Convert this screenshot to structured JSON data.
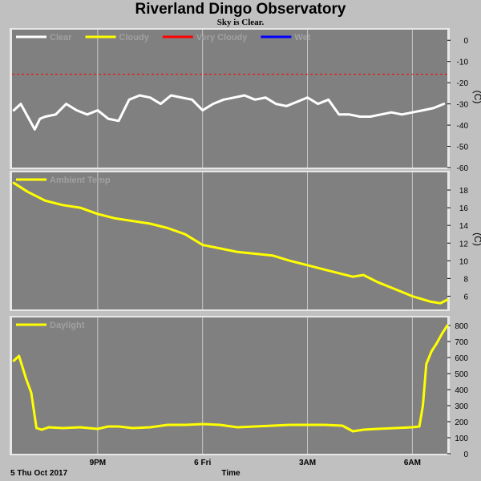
{
  "header": {
    "title": "Riverland Dingo Observatory",
    "subtitle": "Sky is Clear."
  },
  "x_axis": {
    "label": "Time",
    "start_label": "5 Thu Oct 2017",
    "ticks": [
      {
        "label": "9PM",
        "hour": 21
      },
      {
        "label": "6 Fri",
        "hour": 24
      },
      {
        "label": "3AM",
        "hour": 27
      },
      {
        "label": "6AM",
        "hour": 30
      }
    ],
    "range_hours": [
      18.55,
      31.0
    ]
  },
  "colors": {
    "plot_bg": "#808080",
    "page_bg": "#c0c0c0",
    "clear": "#ffffff",
    "cloudy": "#ffff00",
    "very_cloudy": "#ff0000",
    "wet": "#0000ff",
    "gridline": "#c8c8c8",
    "legend_text": "#a0a0a0"
  },
  "chart_data": [
    {
      "type": "line",
      "id": "sky",
      "unit": "(C)",
      "ylim": [
        -60,
        5
      ],
      "yticks": [
        0,
        -10,
        -20,
        -30,
        -40,
        -50,
        -60
      ],
      "legend": [
        {
          "label": "Clear",
          "color": "#ffffff"
        },
        {
          "label": "Cloudy",
          "color": "#ffff00"
        },
        {
          "label": "Very Cloudy",
          "color": "#ff0000"
        },
        {
          "label": "Wet",
          "color": "#0000ff"
        }
      ],
      "threshold_lines": [
        {
          "value": -16,
          "color": "#ff0000",
          "dashed": true
        }
      ],
      "series": [
        {
          "name": "Clear",
          "color": "#ffffff",
          "x": [
            18.6,
            18.8,
            19.0,
            19.2,
            19.35,
            19.5,
            19.8,
            20.1,
            20.4,
            20.7,
            21.0,
            21.3,
            21.6,
            21.9,
            22.2,
            22.5,
            22.8,
            23.1,
            23.4,
            23.7,
            24.0,
            24.3,
            24.6,
            24.9,
            25.2,
            25.5,
            25.8,
            26.1,
            26.4,
            26.7,
            27.0,
            27.3,
            27.6,
            27.9,
            28.2,
            28.5,
            28.8,
            29.1,
            29.4,
            29.7,
            30.0,
            30.3,
            30.6,
            30.9
          ],
          "values": [
            -33,
            -30,
            -36,
            -42,
            -37,
            -36,
            -35,
            -30,
            -33,
            -35,
            -33,
            -37,
            -38,
            -28,
            -26,
            -27,
            -30,
            -26,
            -27,
            -28,
            -33,
            -30,
            -28,
            -27,
            -26,
            -28,
            -27,
            -30,
            -31,
            -29,
            -27,
            -30,
            -28,
            -35,
            -35,
            -36,
            -36,
            -35,
            -34,
            -35,
            -34,
            -33,
            -32,
            -30
          ]
        }
      ]
    },
    {
      "type": "line",
      "id": "ambient",
      "unit": "(C)",
      "ylim": [
        4.5,
        20
      ],
      "yticks": [
        18,
        16,
        14,
        12,
        10,
        8,
        6
      ],
      "legend": [
        {
          "label": "Ambient Temp",
          "color": "#ffff00"
        }
      ],
      "series": [
        {
          "name": "Ambient Temp",
          "color": "#ffff00",
          "x": [
            18.6,
            19.0,
            19.5,
            20.0,
            20.5,
            21.0,
            21.5,
            22.0,
            22.5,
            23.0,
            23.5,
            24.0,
            24.5,
            25.0,
            25.5,
            26.0,
            26.5,
            27.0,
            27.5,
            28.0,
            28.3,
            28.6,
            29.0,
            29.5,
            30.0,
            30.5,
            30.8,
            31.0
          ],
          "values": [
            18.8,
            17.8,
            16.8,
            16.3,
            16.0,
            15.3,
            14.8,
            14.5,
            14.2,
            13.7,
            13.0,
            11.8,
            11.4,
            11.0,
            10.8,
            10.6,
            10.0,
            9.5,
            9.0,
            8.5,
            8.2,
            8.4,
            7.6,
            6.8,
            6.0,
            5.4,
            5.2,
            5.6
          ]
        }
      ]
    },
    {
      "type": "line",
      "id": "daylight",
      "unit": "",
      "ylim": [
        0,
        850
      ],
      "yticks": [
        800,
        700,
        600,
        500,
        400,
        300,
        200,
        100,
        0
      ],
      "legend": [
        {
          "label": "Daylight",
          "color": "#ffff00"
        }
      ],
      "series": [
        {
          "name": "Daylight",
          "color": "#ffff00",
          "x": [
            18.6,
            18.75,
            18.95,
            19.1,
            19.25,
            19.4,
            19.6,
            20.0,
            20.5,
            21.0,
            21.3,
            21.6,
            22.0,
            22.5,
            23.0,
            23.5,
            24.0,
            24.5,
            25.0,
            25.5,
            26.0,
            26.5,
            27.0,
            27.5,
            28.0,
            28.3,
            28.6,
            29.0,
            29.5,
            30.0,
            30.2,
            30.3,
            30.4,
            30.55,
            30.7,
            30.85,
            31.0
          ],
          "values": [
            580,
            610,
            470,
            380,
            160,
            150,
            165,
            160,
            165,
            155,
            170,
            170,
            160,
            165,
            180,
            180,
            185,
            180,
            165,
            170,
            175,
            180,
            180,
            180,
            175,
            140,
            150,
            155,
            160,
            165,
            170,
            300,
            560,
            640,
            690,
            750,
            800
          ]
        }
      ]
    }
  ]
}
